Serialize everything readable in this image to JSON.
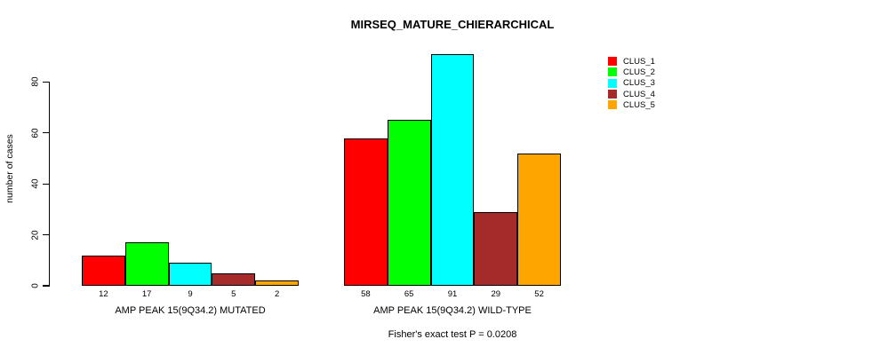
{
  "title": "MIRSEQ_MATURE_CHIERARCHICAL",
  "y_axis": {
    "label": "number of cases",
    "ticks": [
      0,
      20,
      40,
      60,
      80
    ]
  },
  "footnote": "Fisher's exact test P = 0.0208",
  "legend": {
    "position": "right",
    "entries": [
      {
        "label": "CLUS_1",
        "color": "#FF0000"
      },
      {
        "label": "CLUS_2",
        "color": "#00FF00"
      },
      {
        "label": "CLUS_3",
        "color": "#00FFFF"
      },
      {
        "label": "CLUS_4",
        "color": "#A52A2A"
      },
      {
        "label": "CLUS_5",
        "color": "#FFA500"
      }
    ]
  },
  "chart_data": {
    "type": "bar",
    "title": "MIRSEQ_MATURE_CHIERARCHICAL",
    "categories": [
      "AMP PEAK 15(9Q34.2) MUTATED",
      "AMP PEAK 15(9Q34.2) WILD-TYPE"
    ],
    "series": [
      {
        "name": "CLUS_1",
        "color": "#FF0000",
        "values": [
          12,
          58
        ]
      },
      {
        "name": "CLUS_2",
        "color": "#00FF00",
        "values": [
          17,
          65
        ]
      },
      {
        "name": "CLUS_3",
        "color": "#00FFFF",
        "values": [
          9,
          91
        ]
      },
      {
        "name": "CLUS_4",
        "color": "#A52A2A",
        "values": [
          5,
          29
        ]
      },
      {
        "name": "CLUS_5",
        "color": "#FFA500",
        "values": [
          2,
          52
        ]
      }
    ],
    "bar_value_labels": [
      [
        12,
        17,
        9,
        5,
        2
      ],
      [
        58,
        65,
        91,
        29,
        52
      ]
    ],
    "xlabel": "",
    "ylabel": "number of cases",
    "ylim": [
      0,
      91
    ],
    "yticks": [
      0,
      20,
      40,
      60,
      80
    ],
    "grid": false,
    "legend_position": "right",
    "annotation": "Fisher's exact test P = 0.0208"
  }
}
